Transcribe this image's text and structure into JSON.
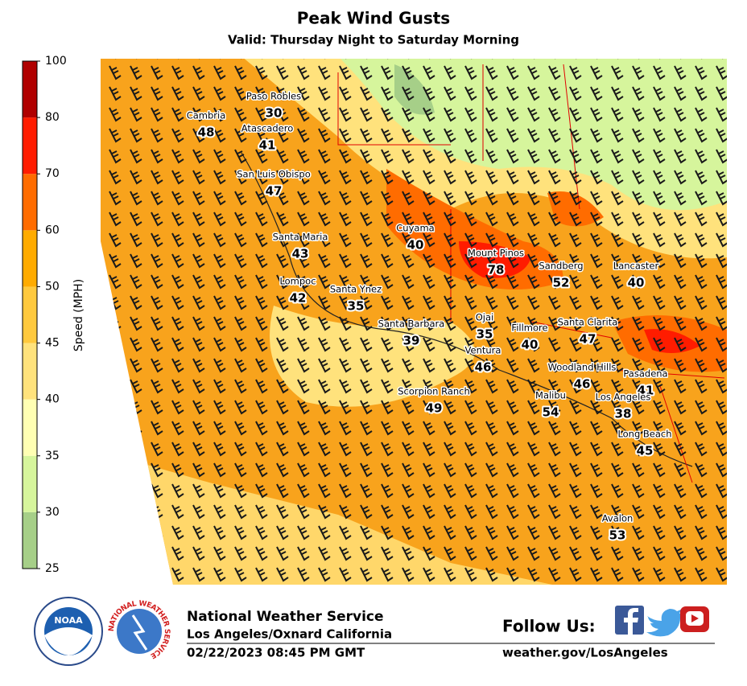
{
  "title": "Peak Wind Gusts",
  "subtitle": "Valid: Thursday Night to Saturday Morning",
  "colorbar": {
    "label": "Speed (MPH)",
    "levels": [
      25,
      30,
      35,
      40,
      45,
      50,
      60,
      70,
      80,
      100
    ],
    "colors": [
      "#a6cf88",
      "#d6f59c",
      "#ffffb3",
      "#ffe27c",
      "#ffc93e",
      "#ffab00",
      "#ff6c00",
      "#ff1c00",
      "#b00000"
    ]
  },
  "cities": [
    {
      "name": "Cambria",
      "value": 48
    },
    {
      "name": "Paso Robles",
      "value": 30
    },
    {
      "name": "Atascadero",
      "value": 41
    },
    {
      "name": "San Luis Obispo",
      "value": 47
    },
    {
      "name": "Santa Maria",
      "value": 43
    },
    {
      "name": "Lompoc",
      "value": 42
    },
    {
      "name": "Santa Ynez",
      "value": 35
    },
    {
      "name": "Cuyama",
      "value": 40
    },
    {
      "name": "Mount Pinos",
      "value": 78
    },
    {
      "name": "Sandberg",
      "value": 52
    },
    {
      "name": "Lancaster",
      "value": 40
    },
    {
      "name": "Santa Barbara",
      "value": 39
    },
    {
      "name": "Ojai",
      "value": 35
    },
    {
      "name": "Fillmore",
      "value": 40
    },
    {
      "name": "Santa Clarita",
      "value": 47
    },
    {
      "name": "Ventura",
      "value": 46
    },
    {
      "name": "Woodland Hills",
      "value": 46
    },
    {
      "name": "Pasadena",
      "value": 41
    },
    {
      "name": "Scorpion Ranch",
      "value": 49
    },
    {
      "name": "Malibu",
      "value": 54
    },
    {
      "name": "Los Angeles",
      "value": 38
    },
    {
      "name": "Long Beach",
      "value": 45
    },
    {
      "name": "Avalon",
      "value": 53
    }
  ],
  "footer": {
    "agency": "National Weather Service",
    "office": "Los Angeles/Oxnard California",
    "timestamp": "02/22/2023 08:45 PM GMT",
    "follow": "Follow Us:",
    "website": "weather.gov/LosAngeles",
    "noaa_logo": "NOAA",
    "nws_logo": "NATIONAL WEATHER SERVICE"
  }
}
